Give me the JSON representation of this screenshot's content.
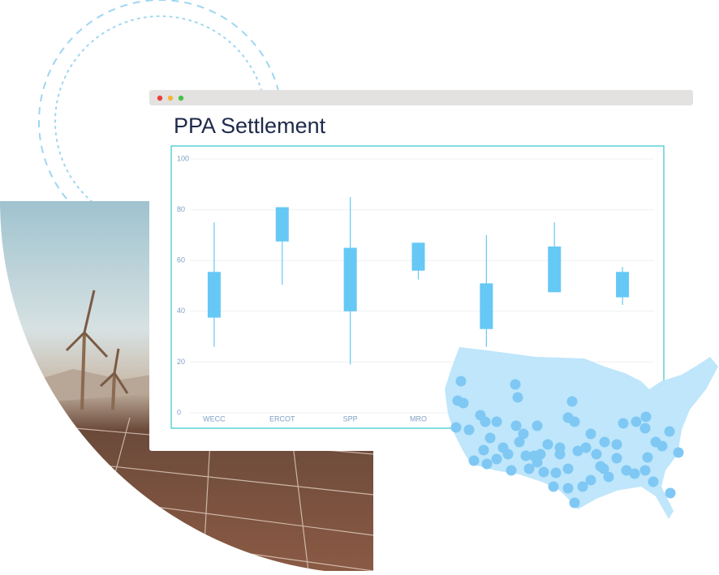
{
  "chart_data": {
    "type": "candlestick",
    "title": "PPA Settlement",
    "categories": [
      "WECC",
      "ERCOT",
      "SPP",
      "MRO",
      null,
      null,
      null
    ],
    "series": [
      {
        "color": "#66c8f5",
        "low": [
          26,
          50.5,
          19,
          52.5,
          26,
          47.5,
          42.5
        ],
        "open": [
          37.5,
          67.5,
          40,
          56,
          33,
          47.5,
          45.5
        ],
        "close": [
          55.5,
          81,
          65,
          67,
          51,
          65.5,
          55.5
        ],
        "high": [
          75,
          81,
          85,
          67,
          70,
          75,
          57.5
        ]
      }
    ],
    "ylim": [
      0,
      100
    ],
    "yticks": [
      0,
      20,
      40,
      60,
      80,
      100
    ],
    "grid": true
  }
}
